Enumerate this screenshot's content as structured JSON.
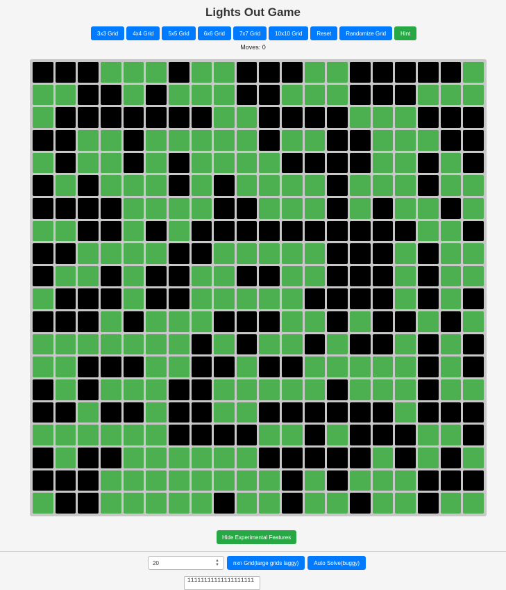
{
  "title": "Lights Out Game",
  "controls": [
    {
      "id": "3x3",
      "label": "3x3 Grid"
    },
    {
      "id": "4x4",
      "label": "4x4 Grid"
    },
    {
      "id": "5x5",
      "label": "5x5 Grid"
    },
    {
      "id": "6x6",
      "label": "6x6 Grid"
    },
    {
      "id": "7x7",
      "label": "7x7 Grid"
    },
    {
      "id": "10x10",
      "label": "10x10 Grid"
    },
    {
      "id": "reset",
      "label": "Reset"
    },
    {
      "id": "randomize",
      "label": "Randomize Grid"
    },
    {
      "id": "hint",
      "label": "Hint"
    }
  ],
  "moves_text": "Moves: 0",
  "colors": {
    "on": "#4caf50",
    "off": "#000000",
    "primary": "#007bff",
    "success": "#28a745"
  },
  "grid": {
    "size": 20,
    "rows": [
      "00011101100011000001",
      "11001011100111000111",
      "10000000110000111000",
      "00110111110110011100",
      "10110101111000011010",
      "01011101011110111011",
      "00001111001110101101",
      "11001010000000000110",
      "00111100111110001011",
      "01101001100110001011",
      "10001001111100001010",
      "00010111000110100101",
      "11111110101101001010",
      "11000110010011111010",
      "01011100111110111011",
      "00100100110000001000",
      "11111100001101000110",
      "01001111110000010101",
      "00011111111010111000",
      "10011111011011011011"
    ]
  },
  "experimental_button": "Hide Experimental Features",
  "size_input_value": "20",
  "nxn_button": "nxn Grid(large grids laggy)",
  "auto_solve_button": "Auto Solve(buggy)",
  "textarea_value": "11111111111111111111"
}
